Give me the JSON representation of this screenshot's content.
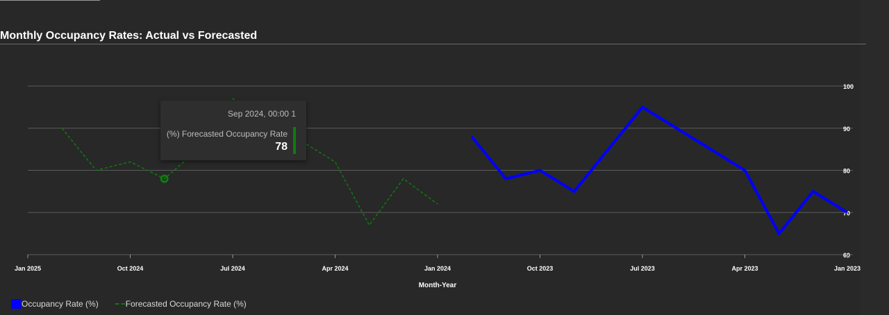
{
  "title": "Monthly Occupancy Rates: Actual vs Forecasted",
  "tooltip": {
    "date": "Sep 2024, 00:00 1",
    "series": "(%) Forecasted Occupancy Rate",
    "value": "78"
  },
  "legend": {
    "actual": "Occupancy Rate (%)",
    "forecast": "Forecasted Occupancy Rate (%)"
  },
  "colors": {
    "background": "#282828",
    "actual": "#0000ff",
    "forecast": "#0f7b0f",
    "grid": "#5c5c5c",
    "axis_text": "#ffffff"
  },
  "chart_data": {
    "type": "line",
    "xlabel": "Month-Year",
    "ylabel": "",
    "x_axis_reversed": true,
    "x_range": [
      "2025-01",
      "2023-01"
    ],
    "ylim": [
      60,
      100
    ],
    "yticks": [
      60,
      70,
      80,
      90,
      100
    ],
    "y_axis_position": "right",
    "grid": true,
    "legend_position": "bottom-left",
    "xticks": [
      {
        "date": "2025-01",
        "label": "Jan 2025"
      },
      {
        "date": "2024-10",
        "label": "Oct 2024"
      },
      {
        "date": "2024-07",
        "label": "Jul 2024"
      },
      {
        "date": "2024-04",
        "label": "Apr 2024"
      },
      {
        "date": "2024-01",
        "label": "Jan 2024"
      },
      {
        "date": "2023-10",
        "label": "Oct 2023"
      },
      {
        "date": "2023-07",
        "label": "Jul 2023"
      },
      {
        "date": "2023-04",
        "label": "Apr 2023"
      },
      {
        "date": "2023-01",
        "label": "Jan 2023"
      }
    ],
    "series": [
      {
        "name": "Occupancy Rate (%)",
        "style": "solid",
        "x": [
          "2023-12",
          "2023-11",
          "2023-10",
          "2023-09",
          "2023-07",
          "2023-04",
          "2023-03",
          "2023-02",
          "2023-01"
        ],
        "y": [
          88,
          78,
          80,
          75,
          95,
          80,
          65,
          75,
          70
        ]
      },
      {
        "name": "Forecasted Occupancy Rate (%)",
        "style": "dashed",
        "x": [
          "2024-12",
          "2024-11",
          "2024-10",
          "2024-09",
          "2024-08",
          "2024-07",
          "2024-06",
          "2024-05",
          "2024-04",
          "2024-03",
          "2024-02",
          "2024-01"
        ],
        "y": [
          90,
          80,
          82,
          78,
          85,
          97,
          93,
          87,
          82,
          67,
          78,
          72
        ]
      }
    ],
    "highlight": {
      "series": 1,
      "x": "2024-09",
      "y": 78
    }
  }
}
